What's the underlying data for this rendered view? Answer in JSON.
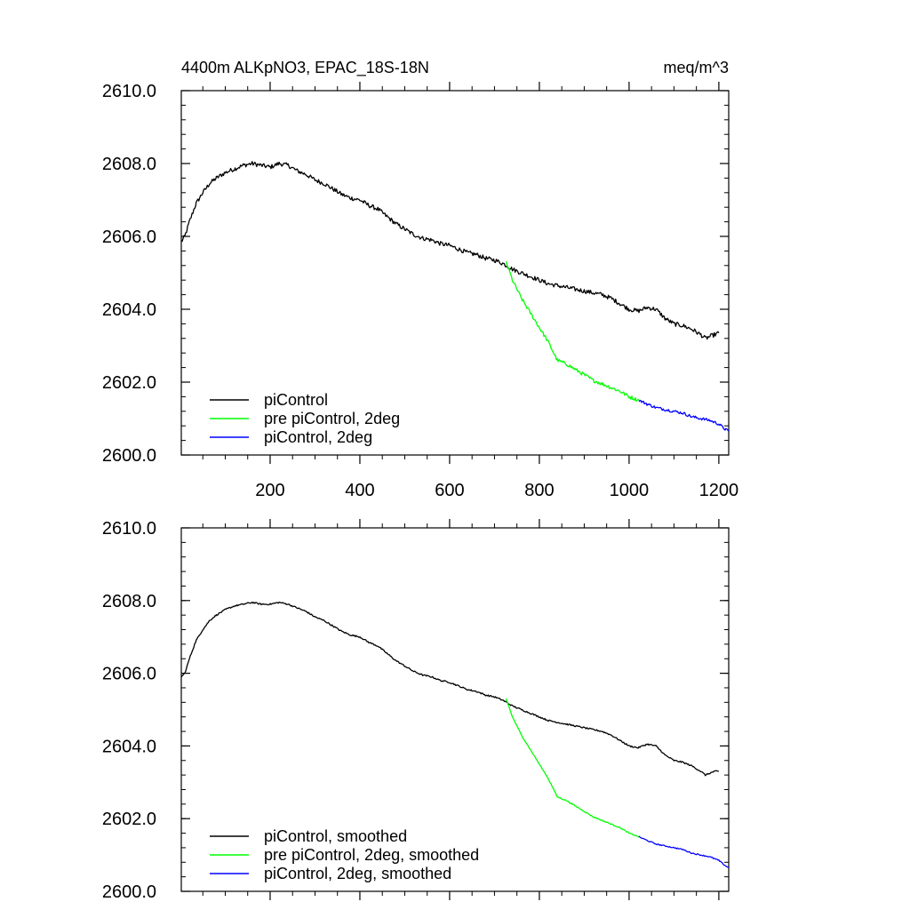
{
  "header": {
    "title_left": "4400m ALKpNO3, EPAC_18S-18N",
    "title_right": "meq/m^3"
  },
  "chart_data": [
    {
      "type": "line",
      "panel": "top",
      "xlim": [
        2,
        1222
      ],
      "ylim": [
        2600,
        2610
      ],
      "x_ticks": [
        200,
        400,
        600,
        800,
        1000,
        1200
      ],
      "x_tick_labels": [
        "200",
        "400",
        "600",
        "800",
        "1000",
        "1200"
      ],
      "y_ticks": [
        2600,
        2602,
        2604,
        2606,
        2608,
        2610
      ],
      "y_tick_labels": [
        "2600.0",
        "2602.0",
        "2604.0",
        "2606.0",
        "2608.0",
        "2610.0"
      ],
      "legend_position": "bottom-left",
      "series": [
        {
          "name": "piControl",
          "color": "#000000",
          "noise": 0.06,
          "x": [
            2,
            10,
            20,
            35,
            50,
            65,
            80,
            100,
            120,
            140,
            160,
            180,
            200,
            220,
            240,
            260,
            280,
            300,
            320,
            340,
            360,
            380,
            400,
            420,
            440,
            460,
            480,
            500,
            520,
            540,
            560,
            580,
            600,
            620,
            640,
            660,
            680,
            700,
            720,
            740,
            760,
            780,
            800,
            820,
            840,
            860,
            880,
            900,
            920,
            940,
            960,
            980,
            1000,
            1020,
            1040,
            1060,
            1080,
            1100,
            1120,
            1140,
            1160,
            1170,
            1180,
            1190,
            1200
          ],
          "values": [
            2605.85,
            2606.0,
            2606.4,
            2606.9,
            2607.2,
            2607.45,
            2607.6,
            2607.75,
            2607.85,
            2607.95,
            2608.0,
            2607.95,
            2607.9,
            2608.0,
            2607.95,
            2607.8,
            2607.7,
            2607.55,
            2607.45,
            2607.3,
            2607.15,
            2607.05,
            2607.0,
            2606.85,
            2606.75,
            2606.55,
            2606.35,
            2606.2,
            2606.05,
            2605.95,
            2605.9,
            2605.8,
            2605.75,
            2605.65,
            2605.55,
            2605.5,
            2605.4,
            2605.35,
            2605.25,
            2605.1,
            2605.0,
            2604.9,
            2604.8,
            2604.7,
            2604.65,
            2604.6,
            2604.55,
            2604.5,
            2604.45,
            2604.4,
            2604.3,
            2604.15,
            2604.0,
            2603.95,
            2604.05,
            2604.0,
            2603.75,
            2603.6,
            2603.55,
            2603.45,
            2603.3,
            2603.2,
            2603.25,
            2603.3,
            2603.35
          ]
        },
        {
          "name": "pre piControl, 2deg",
          "color": "#00ff00",
          "noise": 0.05,
          "x": [
            726,
            740,
            760,
            780,
            800,
            820,
            840,
            860,
            880,
            900,
            920,
            940,
            960,
            980,
            1000,
            1022
          ],
          "values": [
            2605.3,
            2604.8,
            2604.3,
            2603.9,
            2603.5,
            2603.1,
            2602.6,
            2602.5,
            2602.35,
            2602.2,
            2602.05,
            2601.95,
            2601.85,
            2601.75,
            2601.6,
            2601.5
          ]
        },
        {
          "name": "piControl, 2deg",
          "color": "#0000ff",
          "noise": 0.04,
          "x": [
            1022,
            1040,
            1060,
            1080,
            1100,
            1120,
            1140,
            1160,
            1180,
            1200,
            1215,
            1222
          ],
          "values": [
            2601.5,
            2601.4,
            2601.3,
            2601.25,
            2601.2,
            2601.15,
            2601.05,
            2601.0,
            2600.95,
            2600.85,
            2600.7,
            2600.65
          ]
        }
      ]
    },
    {
      "type": "line",
      "panel": "bottom",
      "xlim": [
        2,
        1222
      ],
      "ylim": [
        2600,
        2610
      ],
      "x_ticks": [
        200,
        400,
        600,
        800,
        1000,
        1200
      ],
      "x_tick_labels": [],
      "y_ticks": [
        2600,
        2602,
        2604,
        2606,
        2608,
        2610
      ],
      "y_tick_labels": [
        "2600.0",
        "2602.0",
        "2604.0",
        "2606.0",
        "2608.0",
        "2610.0"
      ],
      "legend_position": "bottom-left",
      "series": [
        {
          "name": "piControl, smoothed",
          "color": "#000000",
          "noise": 0.02,
          "x": [
            2,
            10,
            20,
            35,
            50,
            65,
            80,
            100,
            120,
            140,
            160,
            180,
            200,
            220,
            240,
            260,
            280,
            300,
            320,
            340,
            360,
            380,
            400,
            420,
            440,
            460,
            480,
            500,
            520,
            540,
            560,
            580,
            600,
            620,
            640,
            660,
            680,
            700,
            720,
            740,
            760,
            780,
            800,
            820,
            840,
            860,
            880,
            900,
            920,
            940,
            960,
            980,
            1000,
            1020,
            1040,
            1060,
            1080,
            1100,
            1120,
            1140,
            1160,
            1170,
            1180,
            1190,
            1200
          ],
          "values": [
            2605.9,
            2606.0,
            2606.4,
            2606.9,
            2607.2,
            2607.45,
            2607.6,
            2607.75,
            2607.85,
            2607.9,
            2607.95,
            2607.9,
            2607.9,
            2607.95,
            2607.9,
            2607.8,
            2607.7,
            2607.55,
            2607.45,
            2607.3,
            2607.15,
            2607.05,
            2607.0,
            2606.85,
            2606.75,
            2606.55,
            2606.35,
            2606.2,
            2606.05,
            2605.95,
            2605.9,
            2605.8,
            2605.75,
            2605.65,
            2605.55,
            2605.5,
            2605.4,
            2605.35,
            2605.25,
            2605.1,
            2605.0,
            2604.9,
            2604.8,
            2604.7,
            2604.65,
            2604.6,
            2604.55,
            2604.5,
            2604.45,
            2604.4,
            2604.3,
            2604.15,
            2604.0,
            2603.95,
            2604.05,
            2604.0,
            2603.75,
            2603.6,
            2603.55,
            2603.45,
            2603.3,
            2603.2,
            2603.25,
            2603.3,
            2603.3
          ]
        },
        {
          "name": "pre piControl, 2deg, smoothed",
          "color": "#00ff00",
          "noise": 0.015,
          "x": [
            726,
            740,
            760,
            780,
            800,
            820,
            840,
            860,
            880,
            900,
            920,
            940,
            960,
            980,
            1000,
            1022
          ],
          "values": [
            2605.3,
            2604.8,
            2604.3,
            2603.9,
            2603.5,
            2603.1,
            2602.6,
            2602.5,
            2602.35,
            2602.2,
            2602.05,
            2601.95,
            2601.85,
            2601.75,
            2601.6,
            2601.5
          ]
        },
        {
          "name": "piControl, 2deg, smoothed",
          "color": "#0000ff",
          "noise": 0.015,
          "x": [
            1022,
            1040,
            1060,
            1080,
            1100,
            1120,
            1140,
            1160,
            1180,
            1200,
            1215,
            1222
          ],
          "values": [
            2601.5,
            2601.4,
            2601.3,
            2601.25,
            2601.2,
            2601.15,
            2601.05,
            2601.0,
            2600.95,
            2600.85,
            2600.7,
            2600.65
          ]
        }
      ]
    }
  ]
}
